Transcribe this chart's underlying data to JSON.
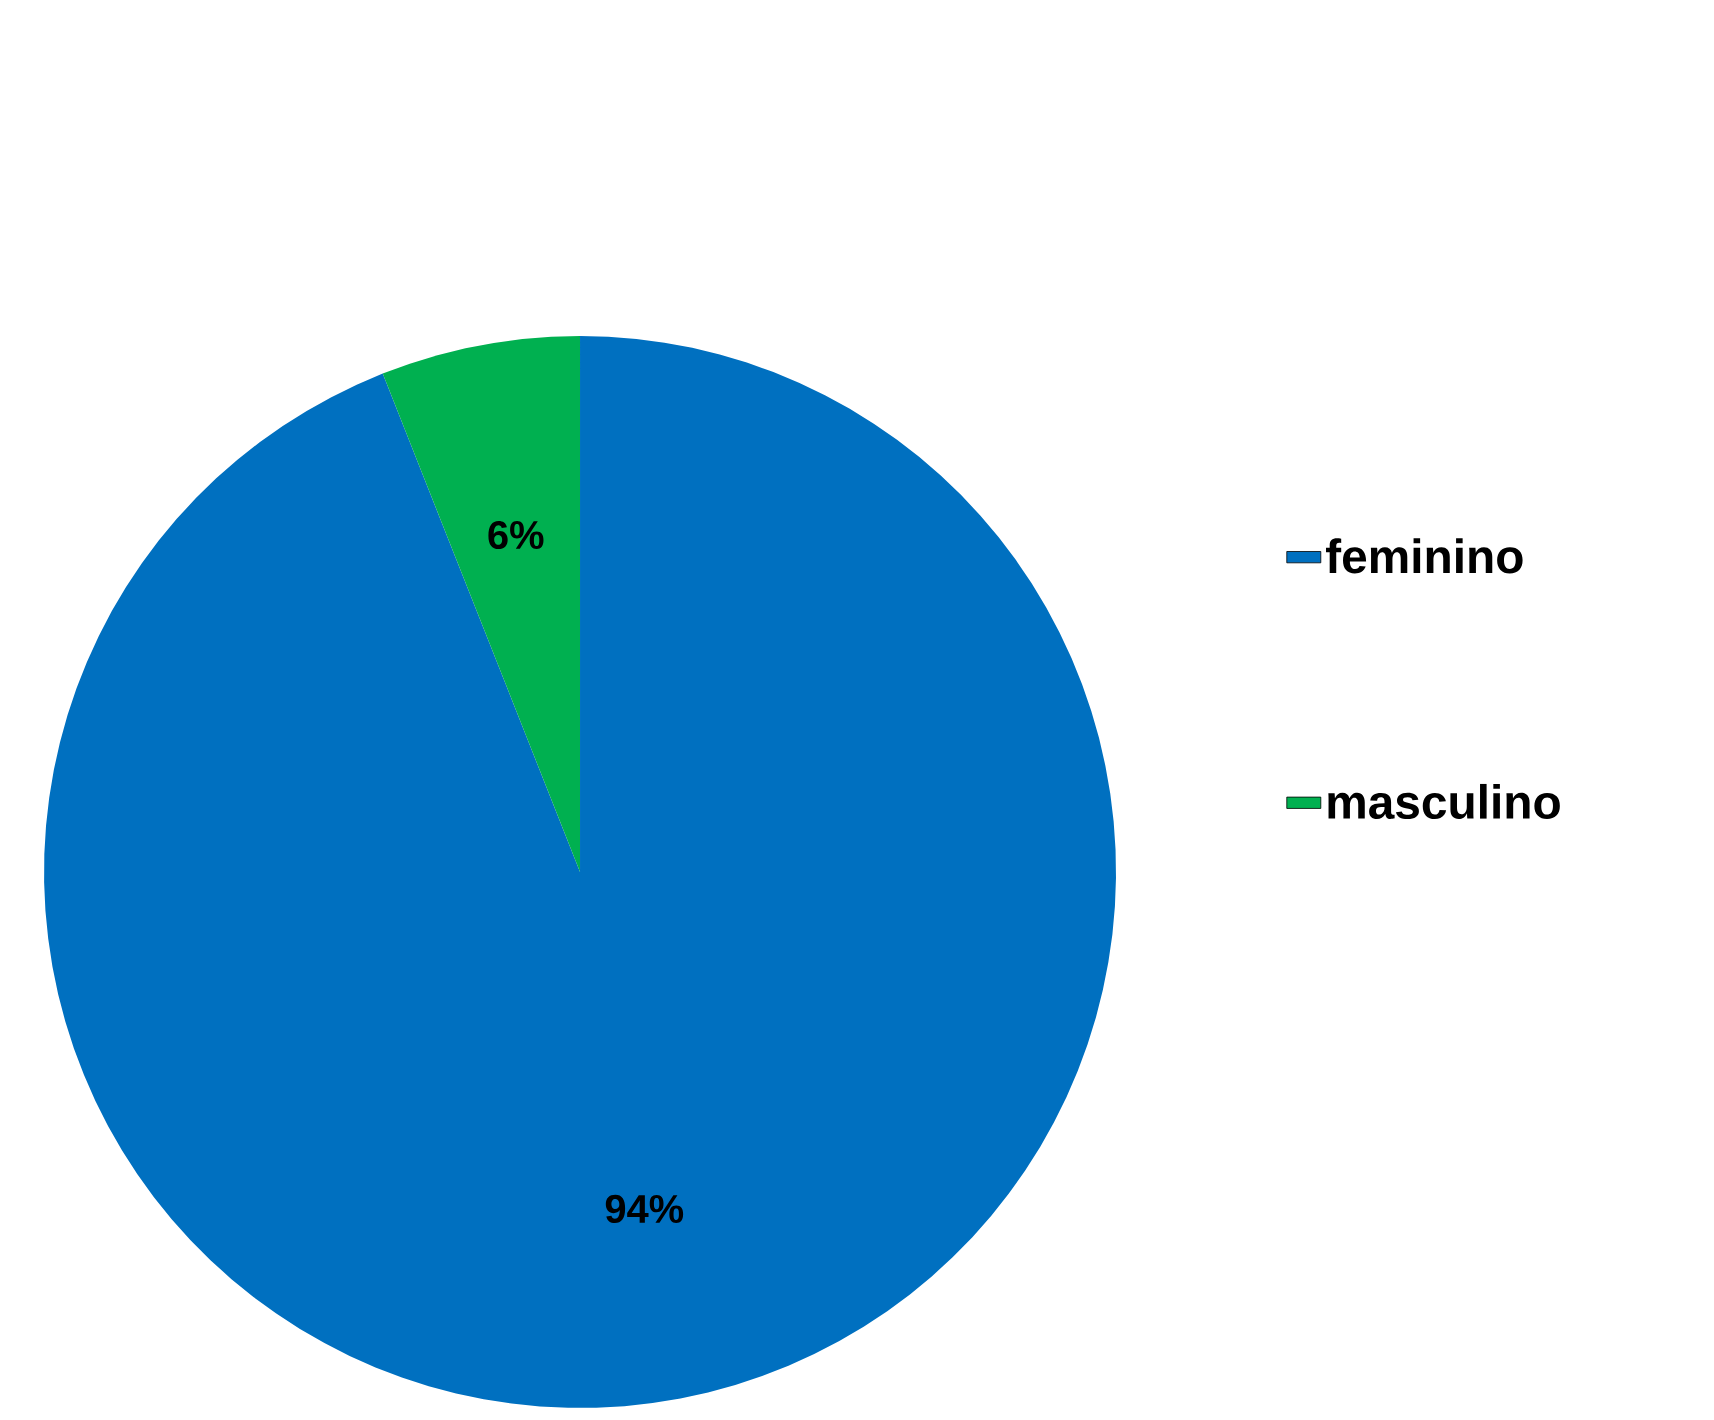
{
  "chart_data": {
    "type": "pie",
    "categories": [
      "feminino",
      "masculino"
    ],
    "values": [
      94,
      6
    ],
    "colors": [
      "#0070c0",
      "#00b050"
    ],
    "value_labels": [
      "94%",
      "6%"
    ],
    "legend": "right"
  }
}
